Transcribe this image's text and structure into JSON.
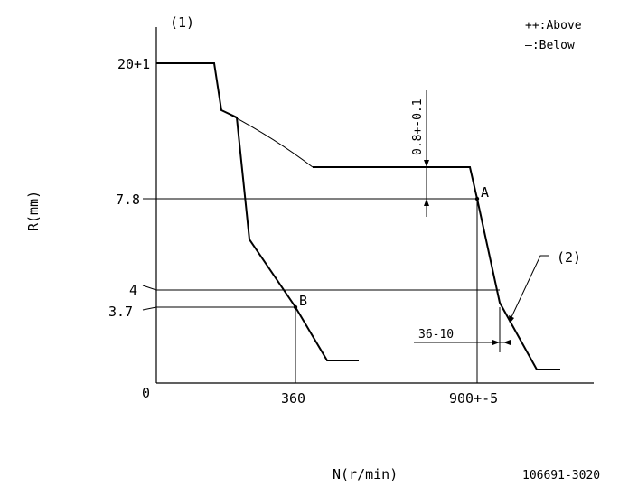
{
  "figure": {
    "label_1": "(1)",
    "label_2": "(2)",
    "legend_above": "++:Above",
    "legend_below": "—:Below",
    "y_axis_label": "R(mm)",
    "x_axis_label": "N(r/min)",
    "code": "106691-3020"
  },
  "y_ticks": {
    "top": "20+1",
    "mid": "7.8",
    "four": "4",
    "low": "3.7",
    "zero": "0"
  },
  "x_ticks": {
    "b": "360",
    "a": "900+-5"
  },
  "annotations": {
    "tolerance": "0.8+-0.1",
    "speed_delta": "36-10",
    "point_a": "A",
    "point_b": "B"
  }
}
